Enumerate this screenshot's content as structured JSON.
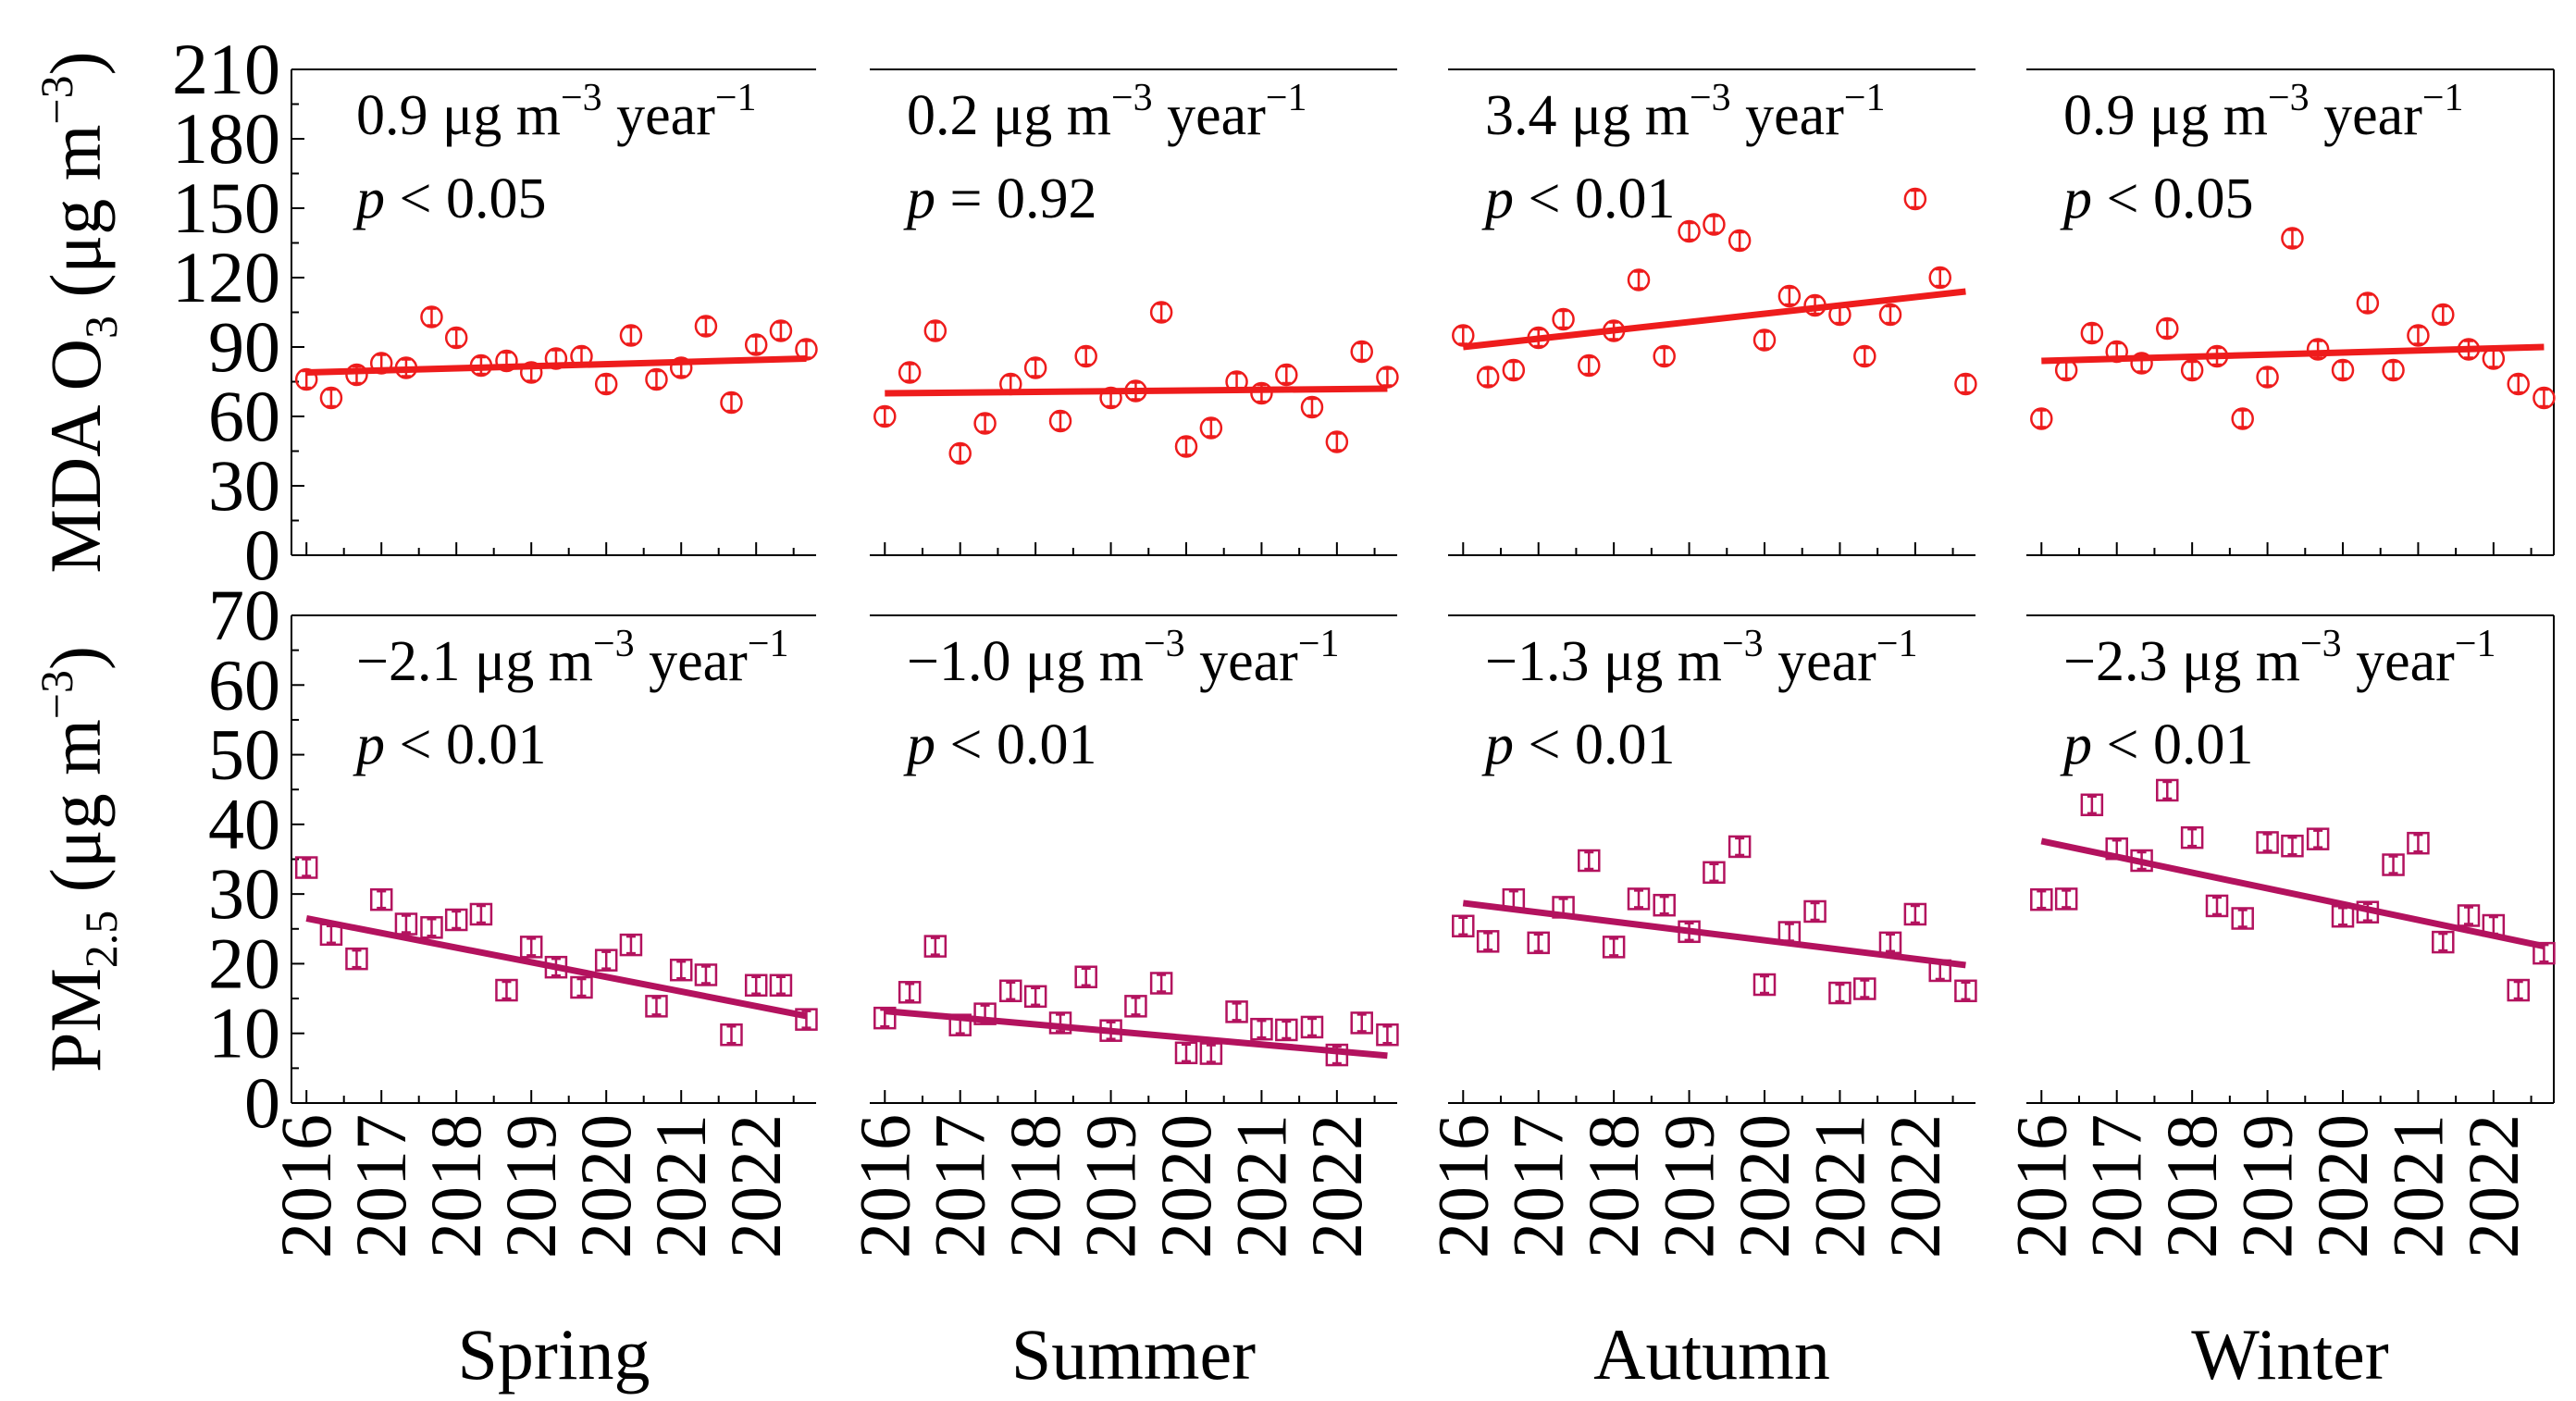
{
  "chart_data": [
    {
      "type": "scatter",
      "title": "MDA O3 — Spring",
      "row": "o3",
      "season": "Spring",
      "ylabel_parts": [
        "MDA O",
        "3",
        " (μg m",
        "−3",
        ")"
      ],
      "ylim": [
        0,
        210
      ],
      "yticks": [
        "0",
        "30",
        "60",
        "90",
        "120",
        "150",
        "180",
        "210"
      ],
      "xlim": [
        2015.8,
        2022.8
      ],
      "color": "#ee1c1c",
      "annotation": {
        "rate": "0.9 μg m",
        "exp1": "−3",
        "mid": " year",
        "exp2": "−1",
        "p_symbol": "p",
        "p_text": " < 0.05"
      },
      "trend": {
        "x": [
          2016.0,
          2022.67
        ],
        "y": [
          79,
          85
        ]
      },
      "x": [
        2016.0,
        2016.33,
        2016.67,
        2017.0,
        2017.33,
        2017.67,
        2018.0,
        2018.33,
        2018.67,
        2019.0,
        2019.33,
        2019.67,
        2020.0,
        2020.33,
        2020.67,
        2021.0,
        2021.33,
        2021.67,
        2022.0,
        2022.33,
        2022.67
      ],
      "y": [
        76,
        68,
        78,
        83,
        81,
        103,
        94,
        82,
        84,
        79,
        85,
        86,
        74,
        95,
        76,
        81,
        99,
        66,
        91,
        97,
        89
      ]
    },
    {
      "type": "scatter",
      "title": "MDA O3 — Summer",
      "row": "o3",
      "season": "Summer",
      "ylim": [
        0,
        210
      ],
      "xlim": [
        2015.8,
        2022.8
      ],
      "color": "#ee1c1c",
      "annotation": {
        "rate": "0.2 μg m",
        "exp1": "−3",
        "mid": " year",
        "exp2": "−1",
        "p_symbol": "p",
        "p_text": " = 0.92"
      },
      "trend": {
        "x": [
          2016.0,
          2022.67
        ],
        "y": [
          70,
          72
        ]
      },
      "x": [
        2016.0,
        2016.33,
        2016.67,
        2017.0,
        2017.33,
        2017.67,
        2018.0,
        2018.33,
        2018.67,
        2019.0,
        2019.33,
        2019.67,
        2020.0,
        2020.33,
        2020.67,
        2021.0,
        2021.33,
        2021.67,
        2022.0,
        2022.33,
        2022.67
      ],
      "y": [
        60,
        79,
        97,
        44,
        57,
        74,
        81,
        58,
        86,
        68,
        71,
        105,
        47,
        55,
        75,
        70,
        78,
        64,
        49,
        88,
        77
      ]
    },
    {
      "type": "scatter",
      "title": "MDA O3 — Autumn",
      "row": "o3",
      "season": "Autumn",
      "ylim": [
        0,
        210
      ],
      "xlim": [
        2015.8,
        2022.8
      ],
      "color": "#ee1c1c",
      "annotation": {
        "rate": "3.4 μg m",
        "exp1": "−3",
        "mid": " year",
        "exp2": "−1",
        "p_symbol": "p",
        "p_text": " < 0.01"
      },
      "trend": {
        "x": [
          2016.0,
          2022.67
        ],
        "y": [
          90,
          114
        ]
      },
      "x": [
        2016.0,
        2016.33,
        2016.67,
        2017.0,
        2017.33,
        2017.67,
        2018.0,
        2018.33,
        2018.67,
        2019.0,
        2019.33,
        2019.67,
        2020.0,
        2020.33,
        2020.67,
        2021.0,
        2021.33,
        2021.67,
        2022.0,
        2022.33,
        2022.67
      ],
      "y": [
        95,
        77,
        80,
        94,
        102,
        82,
        97,
        119,
        86,
        140,
        143,
        136,
        93,
        112,
        108,
        104,
        86,
        104,
        154,
        120,
        74
      ]
    },
    {
      "type": "scatter",
      "title": "MDA O3 — Winter",
      "row": "o3",
      "season": "Winter",
      "ylim": [
        0,
        210
      ],
      "xlim": [
        2015.8,
        2022.8
      ],
      "color": "#ee1c1c",
      "annotation": {
        "rate": "0.9 μg m",
        "exp1": "−3",
        "mid": " year",
        "exp2": "−1",
        "p_symbol": "p",
        "p_text": " < 0.05"
      },
      "trend": {
        "x": [
          2016.0,
          2022.67
        ],
        "y": [
          84,
          90
        ]
      },
      "x": [
        2016.0,
        2016.33,
        2016.67,
        2017.0,
        2017.33,
        2017.67,
        2018.0,
        2018.33,
        2018.67,
        2019.0,
        2019.33,
        2019.67,
        2020.0,
        2020.33,
        2020.67,
        2021.0,
        2021.33,
        2021.67,
        2022.0,
        2022.33,
        2022.67
      ],
      "y": [
        59,
        80,
        96,
        88,
        83,
        98,
        80,
        86,
        59,
        77,
        137,
        89,
        80,
        109,
        80,
        95,
        104,
        89,
        85,
        74,
        68
      ]
    },
    {
      "type": "scatter",
      "title": "PM2.5 — Spring",
      "row": "pm",
      "season": "Spring",
      "ylabel_parts": [
        "PM",
        "2.5",
        " (μg m",
        "−3",
        ")"
      ],
      "ylim": [
        0,
        70
      ],
      "yticks": [
        "0",
        "10",
        "20",
        "30",
        "40",
        "50",
        "60",
        "70"
      ],
      "xlim": [
        2015.8,
        2022.8
      ],
      "color": "#b3125e",
      "annotation": {
        "rate": "−2.1 μg m",
        "exp1": "−3",
        "mid": " year",
        "exp2": "−1",
        "p_symbol": "p",
        "p_text": " < 0.01"
      },
      "trend": {
        "x": [
          2016.0,
          2022.67
        ],
        "y": [
          26.5,
          12.5
        ]
      },
      "x": [
        2016.0,
        2016.33,
        2016.67,
        2017.0,
        2017.33,
        2017.67,
        2018.0,
        2018.33,
        2018.67,
        2019.0,
        2019.33,
        2019.67,
        2020.0,
        2020.33,
        2020.67,
        2021.0,
        2021.33,
        2021.67,
        2022.0,
        2022.33,
        2022.67
      ],
      "y": [
        33.8,
        24.2,
        20.7,
        29.2,
        25.7,
        25.2,
        26.3,
        27.1,
        16.2,
        22.4,
        19.5,
        16.6,
        20.5,
        22.7,
        13.9,
        19.1,
        18.4,
        9.8,
        16.9,
        16.9,
        12.0
      ]
    },
    {
      "type": "scatter",
      "title": "PM2.5 — Summer",
      "row": "pm",
      "season": "Summer",
      "ylim": [
        0,
        70
      ],
      "xlim": [
        2015.8,
        2022.8
      ],
      "color": "#b3125e",
      "annotation": {
        "rate": "−1.0 μg m",
        "exp1": "−3",
        "mid": " year",
        "exp2": "−1",
        "p_symbol": "p",
        "p_text": " < 0.01"
      },
      "trend": {
        "x": [
          2016.0,
          2022.67
        ],
        "y": [
          13.2,
          6.8
        ]
      },
      "x": [
        2016.0,
        2016.33,
        2016.67,
        2017.0,
        2017.33,
        2017.67,
        2018.0,
        2018.33,
        2018.67,
        2019.0,
        2019.33,
        2019.67,
        2020.0,
        2020.33,
        2020.67,
        2021.0,
        2021.33,
        2021.67,
        2022.0,
        2022.33,
        2022.67
      ],
      "y": [
        12.2,
        15.9,
        22.5,
        11.2,
        12.8,
        16.1,
        15.3,
        11.5,
        18.1,
        10.4,
        13.9,
        17.2,
        7.2,
        7.1,
        13.1,
        10.6,
        10.5,
        10.9,
        6.9,
        11.5,
        9.8
      ]
    },
    {
      "type": "scatter",
      "title": "PM2.5 — Autumn",
      "row": "pm",
      "season": "Autumn",
      "ylim": [
        0,
        70
      ],
      "xlim": [
        2015.8,
        2022.8
      ],
      "color": "#b3125e",
      "annotation": {
        "rate": "−1.3 μg m",
        "exp1": "−3",
        "mid": " year",
        "exp2": "−1",
        "p_symbol": "p",
        "p_text": " < 0.01"
      },
      "trend": {
        "x": [
          2016.0,
          2022.67
        ],
        "y": [
          28.7,
          19.8
        ]
      },
      "x": [
        2016.0,
        2016.33,
        2016.67,
        2017.0,
        2017.33,
        2017.67,
        2018.0,
        2018.33,
        2018.67,
        2019.0,
        2019.33,
        2019.67,
        2020.0,
        2020.33,
        2020.67,
        2021.0,
        2021.33,
        2021.67,
        2022.0,
        2022.33,
        2022.67
      ],
      "y": [
        25.4,
        23.2,
        29.2,
        23.0,
        28.1,
        34.8,
        22.4,
        29.3,
        28.4,
        24.6,
        33.1,
        36.8,
        17.0,
        24.5,
        27.5,
        15.8,
        16.4,
        23.0,
        27.1,
        19.0,
        16.1
      ]
    },
    {
      "type": "scatter",
      "title": "PM2.5 — Winter",
      "row": "pm",
      "season": "Winter",
      "ylim": [
        0,
        70
      ],
      "xlim": [
        2015.8,
        2022.8
      ],
      "color": "#b3125e",
      "annotation": {
        "rate": "−2.3 μg m",
        "exp1": "−3",
        "mid": " year",
        "exp2": "−1",
        "p_symbol": "p",
        "p_text": " < 0.01"
      },
      "trend": {
        "x": [
          2016.0,
          2022.67
        ],
        "y": [
          37.6,
          22.5
        ]
      },
      "x": [
        2016.0,
        2016.33,
        2016.67,
        2017.0,
        2017.33,
        2017.67,
        2018.0,
        2018.33,
        2018.67,
        2019.0,
        2019.33,
        2019.67,
        2020.0,
        2020.33,
        2020.67,
        2021.0,
        2021.33,
        2021.67,
        2022.0,
        2022.33,
        2022.67
      ],
      "y": [
        29.2,
        29.3,
        42.8,
        36.5,
        34.8,
        44.9,
        38.1,
        28.3,
        26.5,
        37.4,
        36.9,
        37.9,
        26.8,
        27.4,
        34.2,
        37.3,
        23.1,
        26.9,
        25.5,
        16.2,
        21.5
      ]
    }
  ],
  "x_tick_labels": [
    "2016",
    "2017",
    "2018",
    "2019",
    "2020",
    "2021",
    "2022"
  ],
  "x_tick_values": [
    2016,
    2017,
    2018,
    2019,
    2020,
    2021,
    2022
  ],
  "seasons": [
    "Spring",
    "Summer",
    "Autumn",
    "Winter"
  ]
}
